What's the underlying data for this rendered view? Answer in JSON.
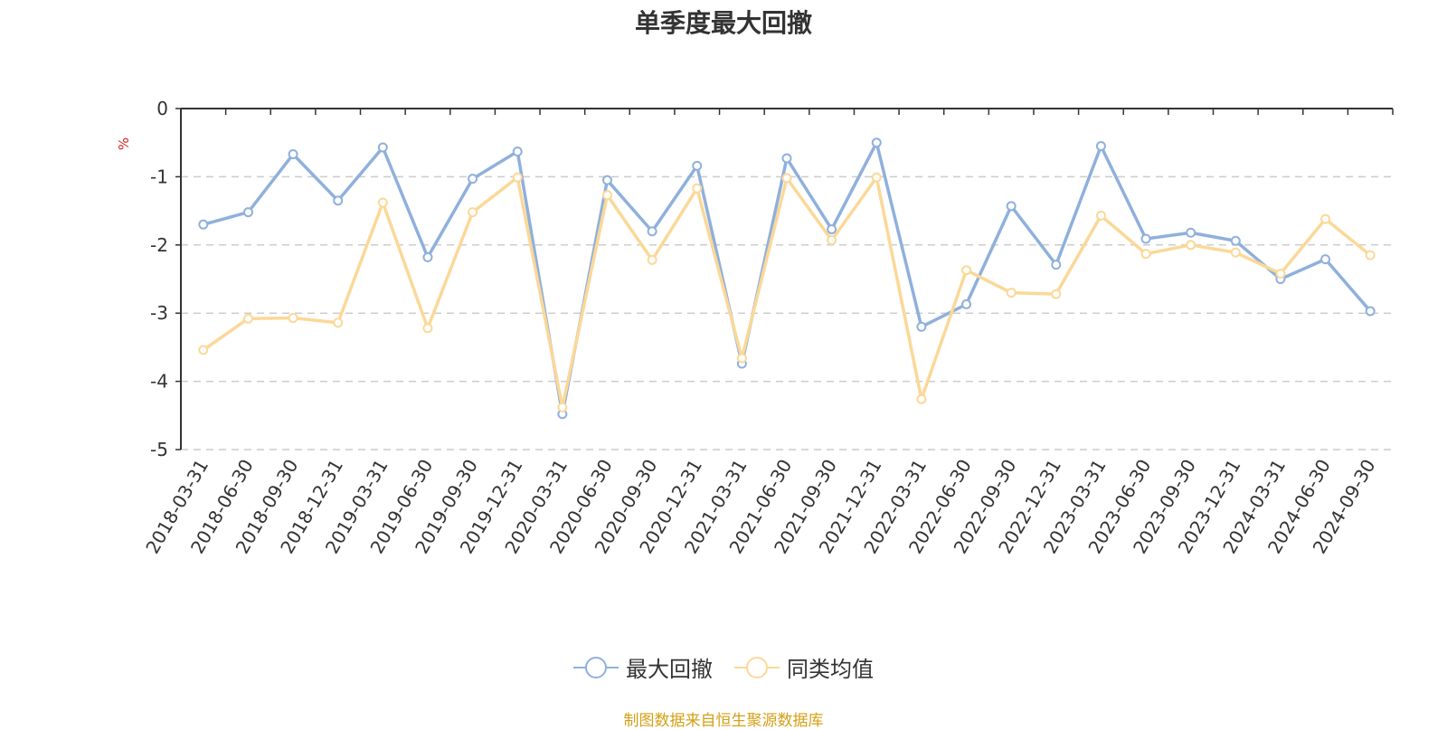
{
  "title": "单季度最大回撤",
  "unit": "%",
  "source": "制图数据来自恒生聚源数据库",
  "colors": {
    "series1": "#8fb0dc",
    "series2": "#fbd898",
    "grid": "#cccccc",
    "axis": "#333333"
  },
  "chart_data": {
    "type": "line",
    "categories": [
      "2018-03-31",
      "2018-06-30",
      "2018-09-30",
      "2018-12-31",
      "2019-03-31",
      "2019-06-30",
      "2019-09-30",
      "2019-12-31",
      "2020-03-31",
      "2020-06-30",
      "2020-09-30",
      "2020-12-31",
      "2021-03-31",
      "2021-06-30",
      "2021-09-30",
      "2021-12-31",
      "2022-03-31",
      "2022-06-30",
      "2022-09-30",
      "2022-12-31",
      "2023-03-31",
      "2023-06-30",
      "2023-09-30",
      "2023-12-31",
      "2024-03-31",
      "2024-06-30",
      "2024-09-30"
    ],
    "series": [
      {
        "name": "最大回撤",
        "values": [
          -1.7,
          -1.52,
          -0.67,
          -1.35,
          -0.57,
          -2.18,
          -1.03,
          -0.63,
          -4.48,
          -1.05,
          -1.8,
          -0.84,
          -3.74,
          -0.73,
          -1.77,
          -0.5,
          -3.2,
          -2.87,
          -1.43,
          -2.29,
          -0.55,
          -1.91,
          -1.82,
          -1.94,
          -2.5,
          -2.21,
          -2.97
        ]
      },
      {
        "name": "同类均值",
        "values": [
          -3.54,
          -3.08,
          -3.07,
          -3.14,
          -1.38,
          -3.22,
          -1.52,
          -1.01,
          -4.38,
          -1.27,
          -2.22,
          -1.17,
          -3.66,
          -1.02,
          -1.93,
          -1.01,
          -4.26,
          -2.37,
          -2.7,
          -2.72,
          -1.57,
          -2.13,
          -2.0,
          -2.11,
          -2.42,
          -1.62,
          -2.15
        ]
      }
    ],
    "yticks": [
      "0",
      "-1",
      "-2",
      "-3",
      "-4",
      "-5"
    ],
    "ylim": [
      -5,
      0
    ],
    "legend_position": "bottom"
  }
}
